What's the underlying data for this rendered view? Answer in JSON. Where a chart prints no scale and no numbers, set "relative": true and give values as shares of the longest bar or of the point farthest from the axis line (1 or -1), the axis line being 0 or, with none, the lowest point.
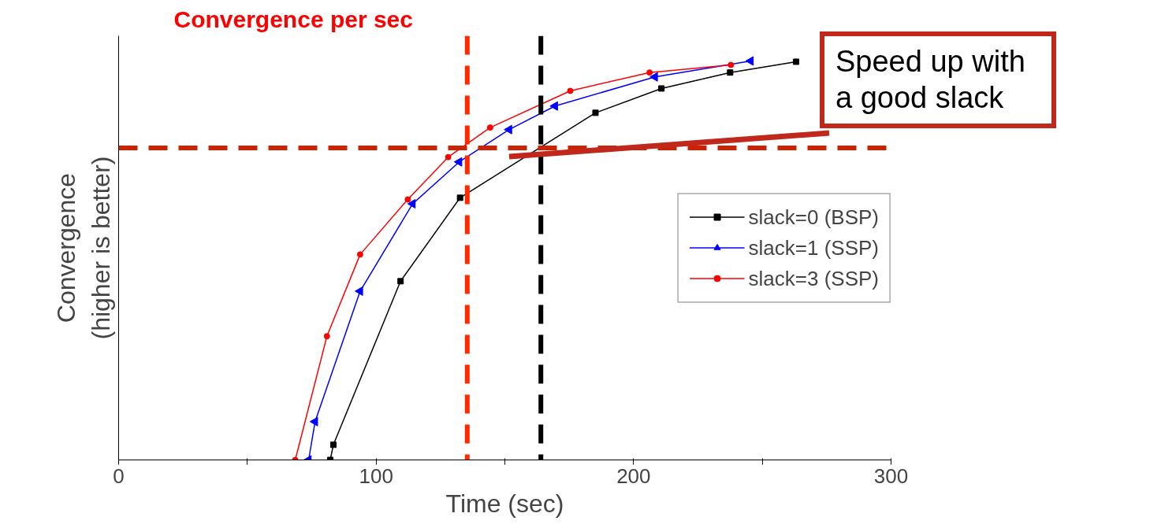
{
  "chart_data": {
    "type": "line",
    "title": "Convergence per sec",
    "xlabel": "Time (sec)",
    "ylabel": "Convergence\n(higher is better)",
    "relative": true,
    "xlim": [
      0,
      300
    ],
    "xticks": [
      0,
      {
        "value": 50,
        "label": null
      },
      100,
      {
        "value": 150,
        "label": null
      },
      200,
      {
        "value": 250,
        "label": null
      },
      300
    ],
    "tick_labels": "x",
    "grid": false,
    "legend": "right",
    "line_style": "solid",
    "series": [
      {
        "name": "slack=0 (BSP)",
        "color": "#000000",
        "marker": "square",
        "x": [
          82.2,
          83.4,
          109.5,
          132.6,
          185.2,
          210.8,
          237.5,
          263.1
        ],
        "values": [
          0,
          0.038,
          0.448,
          0.657,
          0.87,
          0.931,
          0.971,
          0.998
        ]
      },
      {
        "name": "slack=1 (SSP)",
        "color": "#0000ff",
        "marker": "triangle",
        "x": [
          73.8,
          76.3,
          93.8,
          114.2,
          132.3,
          151.7,
          169.5,
          208.3,
          245.5
        ],
        "values": [
          0,
          0.096,
          0.423,
          0.642,
          0.747,
          0.828,
          0.887,
          0.96,
          1.0
        ]
      },
      {
        "name": "slack=3 (SSP)",
        "color": "#ff0000",
        "marker": "circle",
        "x": [
          68.6,
          80.9,
          93.8,
          112.3,
          128,
          144.3,
          175.4,
          206.2,
          237.8
        ],
        "values": [
          0,
          0.31,
          0.515,
          0.653,
          0.759,
          0.833,
          0.925,
          0.971,
          0.99
        ]
      }
    ],
    "ref_lines": [
      {
        "axis": "x",
        "value": 135.4,
        "color": "#ff2a00",
        "line_style": "dashed"
      },
      {
        "axis": "x",
        "value": 164,
        "color": "#000000",
        "line_style": "dashed"
      },
      {
        "axis": "y",
        "value": 0.782,
        "color": "#cc2200",
        "line_style": "dashed"
      }
    ],
    "annotations": [
      "Speed up with a good slack"
    ]
  }
}
